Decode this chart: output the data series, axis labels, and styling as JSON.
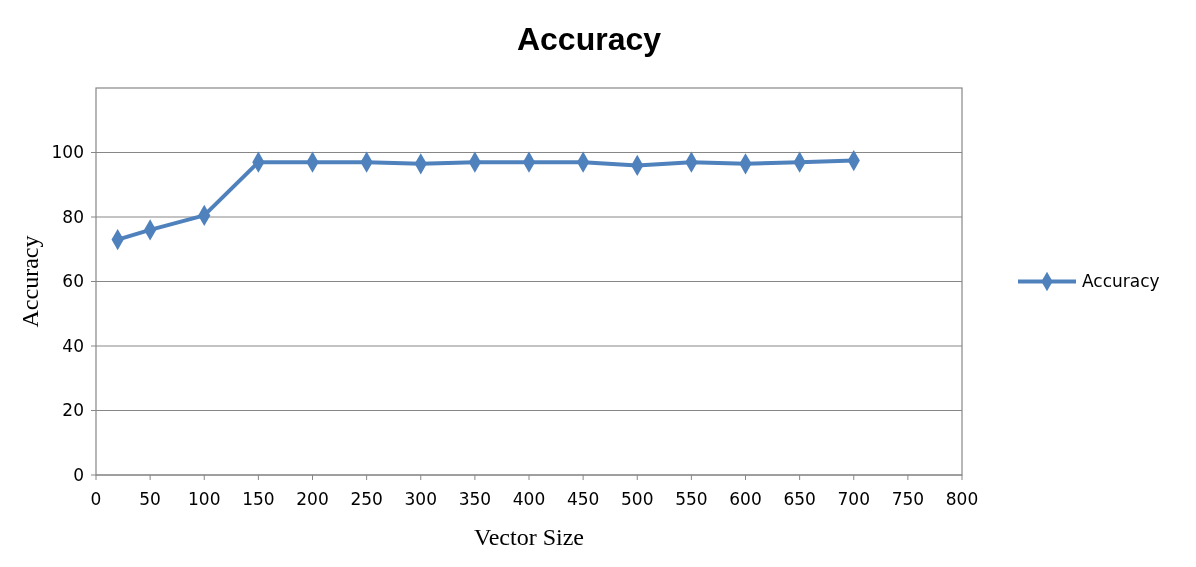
{
  "chart_data": {
    "type": "line",
    "title": "Accuracy",
    "xlabel": "Vector Size",
    "ylabel": "Accuracy",
    "x": [
      20,
      50,
      100,
      150,
      200,
      250,
      300,
      350,
      400,
      450,
      500,
      550,
      600,
      650,
      700
    ],
    "series": [
      {
        "name": "Accuracy",
        "color": "#4f81bd",
        "values": [
          73,
          76,
          80.5,
          97,
          97,
          97,
          96.5,
          97,
          97,
          97,
          96,
          97,
          96.5,
          97,
          97.5
        ]
      }
    ],
    "xlim": [
      0,
      800
    ],
    "xticks": [
      0,
      50,
      100,
      150,
      200,
      250,
      300,
      350,
      400,
      450,
      500,
      550,
      600,
      650,
      700,
      750,
      800
    ],
    "ylim": [
      0,
      120
    ],
    "yticks": [
      0,
      20,
      40,
      60,
      80,
      100
    ],
    "grid": "y",
    "legend": "right",
    "marker": "diamond",
    "line_style": "solid"
  }
}
